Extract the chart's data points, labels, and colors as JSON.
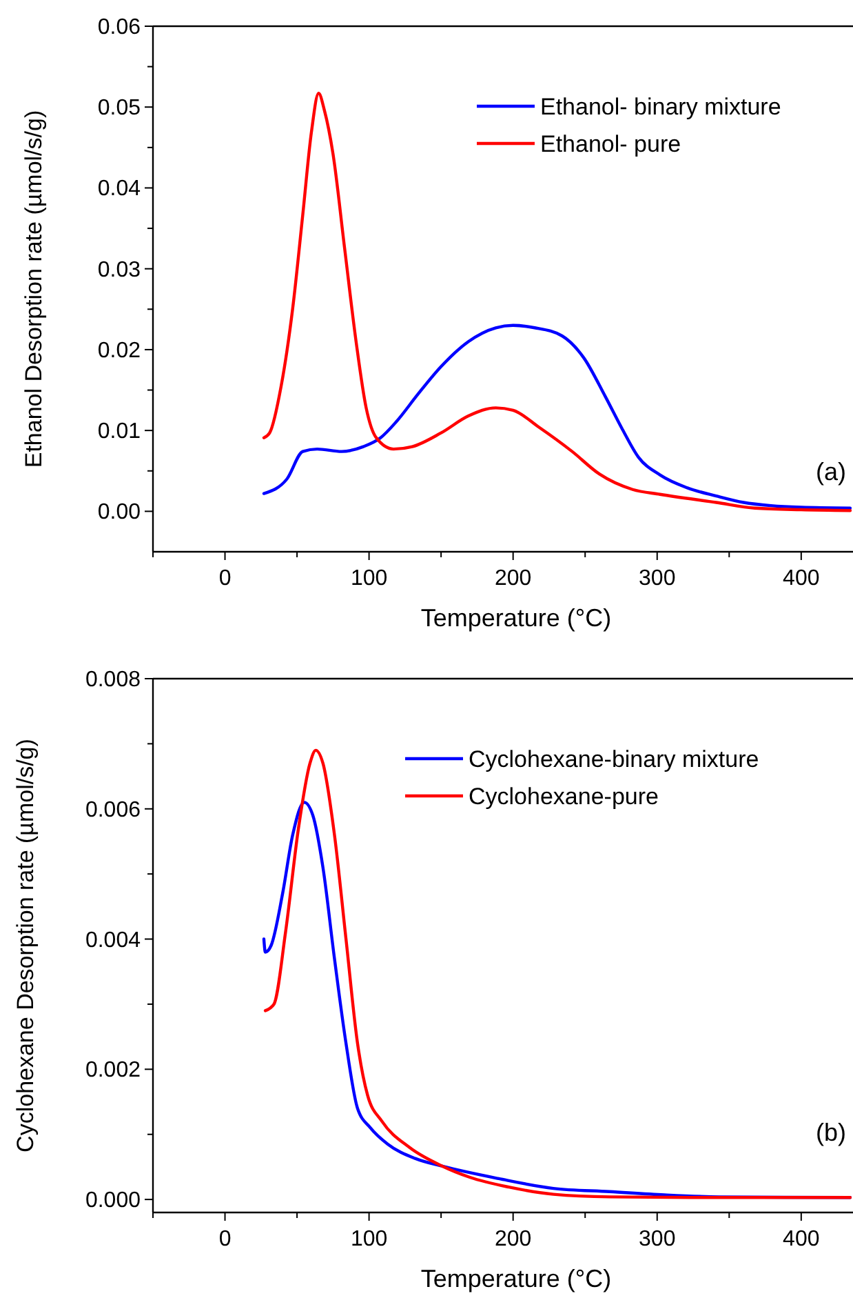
{
  "chart_data": [
    {
      "type": "line",
      "xlabel": "Temperature (°C)",
      "ylabel": "Ethanol Desorption rate (µmol/s/g)",
      "xlim": [
        -50,
        435
      ],
      "ylim": [
        -0.005,
        0.06
      ],
      "xticks": [
        {
          "value": -50,
          "label": null
        },
        0,
        {
          "value": 50,
          "label": null
        },
        100,
        {
          "value": 150,
          "label": null
        },
        200,
        {
          "value": 250,
          "label": null
        },
        300,
        {
          "value": 350,
          "label": null
        },
        400
      ],
      "yticks": [
        {
          "value": 0,
          "label": "0.00"
        },
        {
          "value": 0.005,
          "label": null
        },
        {
          "value": 0.01,
          "label": "0.01"
        },
        {
          "value": 0.015,
          "label": null
        },
        {
          "value": 0.02,
          "label": "0.02"
        },
        {
          "value": 0.025,
          "label": null
        },
        {
          "value": 0.03,
          "label": "0.03"
        },
        {
          "value": 0.035,
          "label": null
        },
        {
          "value": 0.04,
          "label": "0.04"
        },
        {
          "value": 0.045,
          "label": null
        },
        {
          "value": 0.05,
          "label": "0.05"
        },
        {
          "value": 0.055,
          "label": null
        },
        {
          "value": 0.06,
          "label": "0.06"
        }
      ],
      "legend": "top right",
      "annotations": [
        "(a)"
      ],
      "series": [
        {
          "name": "Ethanol- binary mixture",
          "color": "#0000ff",
          "x": [
            27,
            43,
            54,
            64,
            81,
            96,
            108,
            119,
            134,
            150,
            169,
            188,
            200,
            215,
            234,
            249,
            264,
            276,
            287,
            302,
            321,
            341,
            360,
            379,
            400,
            434
          ],
          "values": [
            0.0022,
            0.004,
            0.0074,
            0.0077,
            0.0074,
            0.008,
            0.0091,
            0.0111,
            0.0145,
            0.0179,
            0.021,
            0.0227,
            0.023,
            0.0227,
            0.0217,
            0.019,
            0.0142,
            0.0101,
            0.0067,
            0.0045,
            0.0029,
            0.0019,
            0.0011,
            0.0007,
            0.0005,
            0.0004
          ]
        },
        {
          "name": "Ethanol- pure",
          "color": "#ff0000",
          "x": [
            27,
            31,
            39,
            47,
            54,
            60,
            65,
            69,
            75,
            83,
            91,
            98,
            105,
            117,
            130,
            150,
            169,
            188,
            200,
            218,
            241,
            260,
            283,
            302,
            341,
            368,
            400,
            434
          ],
          "values": [
            0.0091,
            0.0097,
            0.0155,
            0.0251,
            0.0367,
            0.0469,
            0.0517,
            0.0496,
            0.0442,
            0.0326,
            0.021,
            0.0128,
            0.0091,
            0.0077,
            0.008,
            0.0097,
            0.0118,
            0.0128,
            0.0125,
            0.0104,
            0.0074,
            0.0046,
            0.0027,
            0.0021,
            0.0011,
            0.0004,
            0.0002,
            0.0001
          ]
        }
      ]
    },
    {
      "type": "line",
      "xlabel": "Temperature (°C)",
      "ylabel": "Cyclohexane Desorption rate (µmol/s/g)",
      "xlim": [
        -50,
        435
      ],
      "ylim": [
        -0.0002,
        0.008
      ],
      "xticks": [
        {
          "value": -50,
          "label": null
        },
        0,
        {
          "value": 50,
          "label": null
        },
        100,
        {
          "value": 150,
          "label": null
        },
        200,
        {
          "value": 250,
          "label": null
        },
        300,
        {
          "value": 350,
          "label": null
        },
        400
      ],
      "yticks": [
        {
          "value": 0,
          "label": "0.000"
        },
        {
          "value": 0.001,
          "label": null
        },
        {
          "value": 0.002,
          "label": "0.002"
        },
        {
          "value": 0.003,
          "label": null
        },
        {
          "value": 0.004,
          "label": "0.004"
        },
        {
          "value": 0.005,
          "label": null
        },
        {
          "value": 0.006,
          "label": "0.006"
        },
        {
          "value": 0.007,
          "label": null
        },
        {
          "value": 0.008,
          "label": "0.008"
        }
      ],
      "legend": "top right",
      "annotations": [
        "(b)"
      ],
      "series": [
        {
          "name": "Cyclohexane-binary mixture",
          "color": "#0000ff",
          "x": [
            27,
            28,
            32,
            40,
            47,
            55,
            61,
            68,
            76,
            84,
            92,
            101,
            113,
            132,
            151,
            190,
            228,
            267,
            305,
            343,
            434
          ],
          "values": [
            0.004,
            0.0038,
            0.0039,
            0.0047,
            0.0056,
            0.0061,
            0.0059,
            0.0051,
            0.0037,
            0.0024,
            0.0014,
            0.0011,
            0.00085,
            0.00063,
            0.00051,
            0.00032,
            0.00017,
            0.00012,
            7e-05,
            4e-05,
            3e-05
          ]
        },
        {
          "name": "Cyclohexane-pure",
          "color": "#ff0000",
          "x": [
            28,
            34,
            42,
            51,
            59,
            63,
            68,
            76,
            84,
            92,
            99,
            109,
            128,
            151,
            170,
            197,
            228,
            267,
            343,
            434
          ],
          "values": [
            0.0029,
            0.003,
            0.0041,
            0.0057,
            0.0067,
            0.0069,
            0.0067,
            0.0056,
            0.004,
            0.0024,
            0.0016,
            0.0012,
            0.0008,
            0.00051,
            0.00034,
            0.00019,
            8e-05,
            4e-05,
            3e-05,
            3e-05
          ]
        }
      ]
    }
  ]
}
